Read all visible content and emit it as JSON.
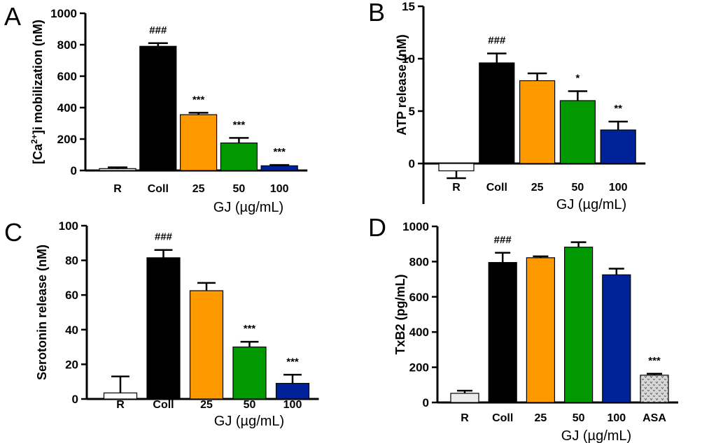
{
  "chart_data": [
    {
      "type": "bar",
      "panel": "A",
      "ylabel": "[Ca2+]i mobilization (nM)",
      "ylabel_parts": {
        "before": "[Ca",
        "superscript": "2+",
        "after": "]i mobilization (nM)"
      },
      "xlabel": "GJ (µg/mL)",
      "ylim": [
        0,
        1000
      ],
      "yticks": [
        0,
        200,
        400,
        600,
        800,
        1000
      ],
      "categories": [
        "R",
        "Coll",
        "25",
        "50",
        "100"
      ],
      "values": [
        12,
        790,
        355,
        175,
        30
      ],
      "errors": [
        8,
        20,
        12,
        32,
        5
      ],
      "colors": [
        "#ececec",
        "#000000",
        "#ff9900",
        "#009900",
        "#002299"
      ],
      "significance": [
        "",
        "###",
        "***",
        "***",
        "***"
      ]
    },
    {
      "type": "bar",
      "panel": "B",
      "ylabel": "ATP release (nM)",
      "xlabel": "GJ (µg/mL)",
      "ylim": [
        -2,
        15
      ],
      "yticks": [
        0,
        5,
        10,
        15
      ],
      "categories": [
        "R",
        "Coll",
        "25",
        "50",
        "100"
      ],
      "values": [
        -0.7,
        9.6,
        7.9,
        6.0,
        3.2
      ],
      "errors": [
        0.7,
        0.9,
        0.7,
        0.9,
        0.8
      ],
      "colors": [
        "#ffffff",
        "#000000",
        "#ff9900",
        "#009900",
        "#002299"
      ],
      "significance": [
        "",
        "###",
        "",
        "*",
        "**"
      ]
    },
    {
      "type": "bar",
      "panel": "C",
      "ylabel": "Serotonin release (nM)",
      "xlabel": "GJ (µg/mL)",
      "ylim": [
        0,
        100
      ],
      "yticks": [
        0,
        20,
        40,
        60,
        80,
        100
      ],
      "categories": [
        "R",
        "Coll",
        "25",
        "50",
        "100"
      ],
      "values": [
        3.5,
        81.5,
        62.5,
        30,
        9
      ],
      "errors": [
        9.5,
        4.5,
        4.5,
        3,
        5
      ],
      "colors": [
        "#ffffff",
        "#000000",
        "#ff9900",
        "#009900",
        "#002299"
      ],
      "significance": [
        "",
        "###",
        "",
        "***",
        "***"
      ]
    },
    {
      "type": "bar",
      "panel": "D",
      "ylabel": "TxB2 (pg/mL)",
      "xlabel": "GJ (µg/mL)",
      "ylim": [
        0,
        1000
      ],
      "yticks": [
        0,
        200,
        400,
        600,
        800,
        1000
      ],
      "categories": [
        "R",
        "Coll",
        "25",
        "50",
        "100",
        "ASA"
      ],
      "values": [
        52,
        795,
        822,
        882,
        725,
        155
      ],
      "errors": [
        15,
        55,
        8,
        28,
        35,
        8
      ],
      "colors": [
        "#ececec",
        "#000000",
        "#ff9900",
        "#009900",
        "#002299",
        "#cfcfcf"
      ],
      "patterned": [
        false,
        false,
        false,
        false,
        false,
        true
      ],
      "significance": [
        "",
        "###",
        "",
        "",
        "",
        "***"
      ]
    }
  ]
}
